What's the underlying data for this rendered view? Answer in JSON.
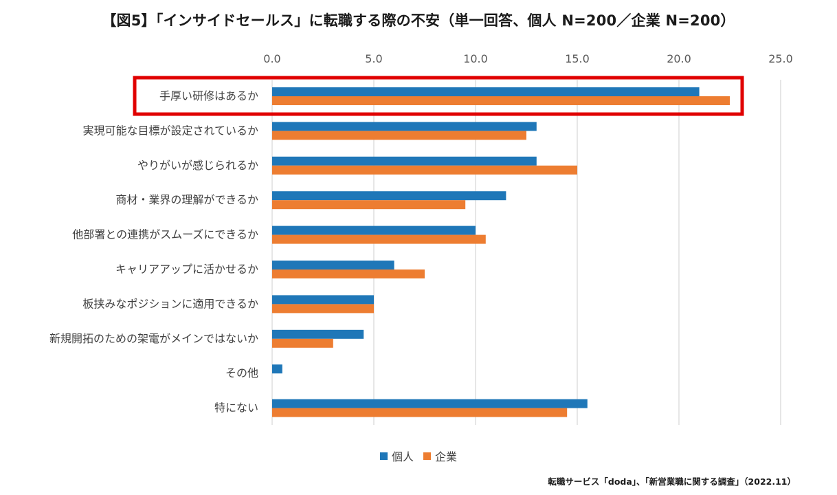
{
  "title": "【図5】「インサイドセールス」に転職する際の不安（単一回答、個人 N=200／企業 N=200）",
  "source": "転職サービス「doda」、「新営業職に関する調査」（2022.11）",
  "colors": {
    "individual": "#1f77b8",
    "company": "#ed7d31",
    "grid": "#d9d9d9",
    "highlight": "#e00000"
  },
  "chart_data": {
    "type": "bar",
    "orientation": "horizontal",
    "categories": [
      "手厚い研修はあるか",
      "実現可能な目標が設定されているか",
      "やりがいが感じられるか",
      "商材・業界の理解ができるか",
      "他部署との連携がスムーズにできるか",
      "キャリアアップに活かせるか",
      "板挟みなポジションに適用できるか",
      "新規開拓のための架電がメインではないか",
      "その他",
      "特にない"
    ],
    "series": [
      {
        "name": "個人",
        "values": [
          21.0,
          13.0,
          13.0,
          11.5,
          10.0,
          6.0,
          5.0,
          4.5,
          0.5,
          15.5
        ]
      },
      {
        "name": "企業",
        "values": [
          22.5,
          12.5,
          15.0,
          9.5,
          10.5,
          7.5,
          5.0,
          3.0,
          0.0,
          14.5
        ]
      }
    ],
    "xlim": [
      0,
      25
    ],
    "xticks": [
      "0.0",
      "5.0",
      "10.0",
      "15.0",
      "20.0",
      "25.0"
    ],
    "grid": true,
    "legend": "bottom",
    "highlighted_category": "手厚い研修はあるか"
  }
}
